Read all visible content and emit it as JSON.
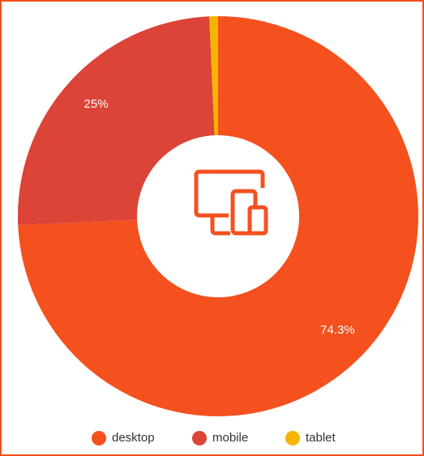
{
  "chart_data": {
    "type": "donut",
    "categories": [
      "desktop",
      "mobile",
      "tablet"
    ],
    "values": [
      74.3,
      25,
      0.7
    ],
    "value_labels": [
      "74.3%",
      "25%",
      null
    ],
    "colors": [
      "#f4511e",
      "#db4437",
      "#f4b400"
    ],
    "legend": "bottom"
  }
}
